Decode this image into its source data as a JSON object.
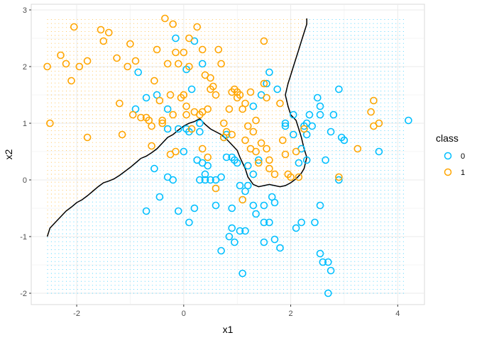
{
  "chart_data": {
    "type": "scatter",
    "title": "",
    "xlabel": "x1",
    "ylabel": "x2",
    "xlim": [
      -2.85,
      4.5
    ],
    "ylim": [
      -2.2,
      3.1
    ],
    "x_ticks": [
      -2,
      0,
      2,
      4
    ],
    "x_tick_labels": [
      "-2",
      "0",
      "2",
      "4"
    ],
    "y_ticks": [
      -2,
      -1,
      0,
      1,
      2,
      3
    ],
    "y_tick_labels": [
      "-2",
      "-1",
      "0",
      "1",
      "2",
      "3"
    ],
    "grid": true,
    "legend": {
      "title": "class",
      "position": "right"
    },
    "background_grid": {
      "x_range": [
        -2.55,
        4.15
      ],
      "y_range": [
        -2.0,
        2.85
      ],
      "step": 0.07
    },
    "series": [
      {
        "name": "0",
        "color": "#00BFFF",
        "points": [
          [
            -0.7,
            1.45
          ],
          [
            -0.5,
            1.5
          ],
          [
            -0.3,
            1.25
          ],
          [
            -0.9,
            1.25
          ],
          [
            -0.85,
            1.9
          ],
          [
            0.15,
            1.6
          ],
          [
            0.05,
            1.95
          ],
          [
            0.35,
            2.05
          ],
          [
            0.05,
            0.9
          ],
          [
            0.0,
            0.5
          ],
          [
            -0.3,
            0.9
          ],
          [
            -0.1,
            0.9
          ],
          [
            0.1,
            0.85
          ],
          [
            0.3,
            1.0
          ],
          [
            0.3,
            0.85
          ],
          [
            0.25,
            0.35
          ],
          [
            0.35,
            0.3
          ],
          [
            0.45,
            0.25
          ],
          [
            0.4,
            0.1
          ],
          [
            0.3,
            0.0
          ],
          [
            0.4,
            0.0
          ],
          [
            0.5,
            0.0
          ],
          [
            0.6,
            0.0
          ],
          [
            0.7,
            0.05
          ],
          [
            0.8,
            0.4
          ],
          [
            0.9,
            0.4
          ],
          [
            0.95,
            0.35
          ],
          [
            1.0,
            0.3
          ],
          [
            0.75,
            0.75
          ],
          [
            0.8,
            0.8
          ],
          [
            -0.55,
            0.2
          ],
          [
            -0.3,
            0.05
          ],
          [
            -0.2,
            0.0
          ],
          [
            -0.45,
            -0.3
          ],
          [
            -0.7,
            -0.55
          ],
          [
            -0.1,
            -0.55
          ],
          [
            0.2,
            -0.5
          ],
          [
            0.1,
            -0.75
          ],
          [
            0.6,
            -0.45
          ],
          [
            0.9,
            -0.5
          ],
          [
            1.05,
            -0.1
          ],
          [
            1.15,
            -0.2
          ],
          [
            1.2,
            -0.1
          ],
          [
            1.3,
            0.1
          ],
          [
            1.3,
            -0.45
          ],
          [
            1.35,
            -0.6
          ],
          [
            1.5,
            -0.75
          ],
          [
            1.6,
            -0.75
          ],
          [
            1.5,
            -0.45
          ],
          [
            1.7,
            -0.4
          ],
          [
            1.65,
            -0.3
          ],
          [
            1.05,
            -0.9
          ],
          [
            1.15,
            -0.9
          ],
          [
            0.9,
            -0.85
          ],
          [
            0.85,
            -1.0
          ],
          [
            0.95,
            -1.1
          ],
          [
            0.7,
            -1.25
          ],
          [
            1.1,
            -1.65
          ],
          [
            1.5,
            -1.1
          ],
          [
            1.7,
            -1.05
          ],
          [
            1.8,
            -1.2
          ],
          [
            2.1,
            -0.85
          ],
          [
            2.2,
            -0.75
          ],
          [
            2.45,
            -0.75
          ],
          [
            2.55,
            -0.45
          ],
          [
            2.55,
            -1.3
          ],
          [
            2.6,
            -1.45
          ],
          [
            2.7,
            -1.45
          ],
          [
            2.75,
            -1.6
          ],
          [
            2.7,
            -2.0
          ],
          [
            2.3,
            0.35
          ],
          [
            2.15,
            0.3
          ],
          [
            2.2,
            0.55
          ],
          [
            2.3,
            1.0
          ],
          [
            2.25,
            0.95
          ],
          [
            2.4,
            0.95
          ],
          [
            2.3,
            0.8
          ],
          [
            2.05,
            0.8
          ],
          [
            2.05,
            1.15
          ],
          [
            2.35,
            1.15
          ],
          [
            2.55,
            1.3
          ],
          [
            2.5,
            1.45
          ],
          [
            2.55,
            1.15
          ],
          [
            2.65,
            0.35
          ],
          [
            2.75,
            0.85
          ],
          [
            2.8,
            1.15
          ],
          [
            2.9,
            1.6
          ],
          [
            2.95,
            0.75
          ],
          [
            3.0,
            0.7
          ],
          [
            1.9,
            0.95
          ],
          [
            1.3,
            1.3
          ],
          [
            1.45,
            1.5
          ],
          [
            1.55,
            1.7
          ],
          [
            1.6,
            1.9
          ],
          [
            1.75,
            1.6
          ],
          [
            1.9,
            1.0
          ],
          [
            3.65,
            0.5
          ],
          [
            4.2,
            1.05
          ],
          [
            2.9,
            0.0
          ],
          [
            1.4,
            0.35
          ],
          [
            -0.15,
            2.5
          ],
          [
            0.2,
            2.45
          ],
          [
            1.2,
            0.25
          ]
        ]
      },
      {
        "name": "1",
        "color": "#FFA500",
        "points": [
          [
            -2.55,
            2.0
          ],
          [
            -2.5,
            1.0
          ],
          [
            -2.3,
            2.2
          ],
          [
            -2.2,
            2.05
          ],
          [
            -2.05,
            2.7
          ],
          [
            -2.1,
            1.75
          ],
          [
            -1.95,
            2.0
          ],
          [
            -1.8,
            2.1
          ],
          [
            -1.8,
            0.75
          ],
          [
            -1.55,
            2.65
          ],
          [
            -1.5,
            2.45
          ],
          [
            -1.4,
            2.6
          ],
          [
            -1.25,
            2.15
          ],
          [
            -1.2,
            1.35
          ],
          [
            -1.15,
            0.8
          ],
          [
            -1.05,
            2.0
          ],
          [
            -1.0,
            2.4
          ],
          [
            -0.95,
            1.15
          ],
          [
            -0.9,
            2.1
          ],
          [
            -0.8,
            1.1
          ],
          [
            -0.7,
            1.1
          ],
          [
            -0.65,
            1.05
          ],
          [
            -0.6,
            0.95
          ],
          [
            -0.55,
            1.75
          ],
          [
            -0.5,
            2.3
          ],
          [
            -0.45,
            1.4
          ],
          [
            -0.4,
            1.0
          ],
          [
            -0.4,
            1.05
          ],
          [
            -0.35,
            2.85
          ],
          [
            -0.3,
            2.05
          ],
          [
            -0.25,
            1.5
          ],
          [
            -0.2,
            1.15
          ],
          [
            -0.2,
            2.75
          ],
          [
            -0.15,
            2.25
          ],
          [
            -0.1,
            2.05
          ],
          [
            -0.05,
            1.45
          ],
          [
            0.0,
            2.25
          ],
          [
            0.0,
            1.5
          ],
          [
            0.05,
            1.3
          ],
          [
            0.05,
            1.15
          ],
          [
            0.1,
            2.0
          ],
          [
            0.1,
            2.5
          ],
          [
            0.15,
            0.9
          ],
          [
            0.2,
            1.2
          ],
          [
            0.25,
            2.7
          ],
          [
            0.3,
            1.15
          ],
          [
            0.35,
            2.3
          ],
          [
            0.35,
            1.2
          ],
          [
            0.4,
            1.85
          ],
          [
            0.45,
            1.25
          ],
          [
            0.5,
            1.6
          ],
          [
            0.5,
            1.8
          ],
          [
            0.55,
            1.65
          ],
          [
            0.6,
            1.5
          ],
          [
            0.65,
            2.3
          ],
          [
            0.7,
            2.05
          ],
          [
            0.75,
            1.0
          ],
          [
            0.8,
            0.85
          ],
          [
            0.85,
            1.25
          ],
          [
            0.9,
            1.55
          ],
          [
            1.0,
            1.45
          ],
          [
            1.05,
            1.5
          ],
          [
            1.0,
            1.55
          ],
          [
            1.1,
            1.25
          ],
          [
            1.15,
            1.35
          ],
          [
            1.15,
            0.7
          ],
          [
            1.2,
            0.95
          ],
          [
            1.25,
            1.55
          ],
          [
            1.3,
            0.85
          ],
          [
            1.35,
            1.05
          ],
          [
            1.35,
            0.5
          ],
          [
            1.4,
            0.3
          ],
          [
            1.5,
            1.7
          ],
          [
            1.55,
            1.45
          ],
          [
            1.6,
            0.35
          ],
          [
            1.6,
            0.2
          ],
          [
            1.7,
            0.1
          ],
          [
            1.8,
            1.35
          ],
          [
            1.85,
            0.7
          ],
          [
            1.9,
            0.45
          ],
          [
            1.95,
            0.1
          ],
          [
            2.0,
            0.05
          ],
          [
            2.1,
            0.5
          ],
          [
            2.15,
            0.05
          ],
          [
            2.25,
            0.9
          ],
          [
            3.55,
            1.4
          ],
          [
            3.5,
            1.2
          ],
          [
            3.55,
            0.95
          ],
          [
            3.65,
            1.0
          ],
          [
            3.25,
            0.55
          ],
          [
            -0.6,
            0.6
          ],
          [
            -0.15,
            0.5
          ],
          [
            0.35,
            0.55
          ],
          [
            0.45,
            0.4
          ],
          [
            0.6,
            -0.15
          ],
          [
            0.9,
            0.8
          ],
          [
            1.1,
            -0.35
          ],
          [
            2.9,
            0.05
          ],
          [
            -0.25,
            0.45
          ],
          [
            0.75,
            0.75
          ],
          [
            1.25,
            0.55
          ],
          [
            1.45,
            0.65
          ],
          [
            1.55,
            0.55
          ],
          [
            0.95,
            1.6
          ],
          [
            1.5,
            2.45
          ]
        ]
      }
    ],
    "decision_boundary": [
      [
        -2.55,
        -1.0
      ],
      [
        -2.5,
        -0.85
      ],
      [
        -2.4,
        -0.75
      ],
      [
        -2.3,
        -0.65
      ],
      [
        -2.2,
        -0.55
      ],
      [
        -2.1,
        -0.48
      ],
      [
        -2.0,
        -0.4
      ],
      [
        -1.9,
        -0.35
      ],
      [
        -1.8,
        -0.28
      ],
      [
        -1.7,
        -0.2
      ],
      [
        -1.6,
        -0.12
      ],
      [
        -1.5,
        -0.05
      ],
      [
        -1.4,
        -0.02
      ],
      [
        -1.3,
        0.02
      ],
      [
        -1.2,
        0.08
      ],
      [
        -1.1,
        0.15
      ],
      [
        -1.0,
        0.22
      ],
      [
        -0.9,
        0.3
      ],
      [
        -0.8,
        0.38
      ],
      [
        -0.7,
        0.42
      ],
      [
        -0.6,
        0.48
      ],
      [
        -0.5,
        0.55
      ],
      [
        -0.4,
        0.65
      ],
      [
        -0.3,
        0.75
      ],
      [
        -0.2,
        0.8
      ],
      [
        -0.1,
        0.88
      ],
      [
        0.0,
        0.95
      ],
      [
        0.1,
        1.0
      ],
      [
        0.2,
        1.03
      ],
      [
        0.3,
        1.08
      ],
      [
        0.4,
        0.98
      ],
      [
        0.5,
        0.9
      ],
      [
        0.6,
        0.85
      ],
      [
        0.7,
        0.8
      ],
      [
        0.8,
        0.72
      ],
      [
        0.9,
        0.62
      ],
      [
        1.0,
        0.52
      ],
      [
        1.05,
        0.4
      ],
      [
        1.1,
        0.3
      ],
      [
        1.15,
        0.2
      ],
      [
        1.2,
        0.05
      ],
      [
        1.3,
        -0.08
      ],
      [
        1.4,
        -0.12
      ],
      [
        1.5,
        -0.1
      ],
      [
        1.6,
        -0.08
      ],
      [
        1.7,
        -0.1
      ],
      [
        1.8,
        -0.12
      ],
      [
        1.9,
        -0.1
      ],
      [
        2.0,
        -0.05
      ],
      [
        2.1,
        0.02
      ],
      [
        2.2,
        0.12
      ],
      [
        2.25,
        0.2
      ],
      [
        2.3,
        0.4
      ],
      [
        2.25,
        0.55
      ],
      [
        2.2,
        0.75
      ],
      [
        2.15,
        0.9
      ],
      [
        2.1,
        1.05
      ],
      [
        2.0,
        1.15
      ],
      [
        1.95,
        1.3
      ],
      [
        1.9,
        1.5
      ],
      [
        1.95,
        1.7
      ],
      [
        2.0,
        1.85
      ],
      [
        2.05,
        2.0
      ],
      [
        2.1,
        2.15
      ],
      [
        2.15,
        2.3
      ],
      [
        2.2,
        2.45
      ],
      [
        2.25,
        2.6
      ],
      [
        2.3,
        2.75
      ],
      [
        2.3,
        2.85
      ]
    ]
  }
}
